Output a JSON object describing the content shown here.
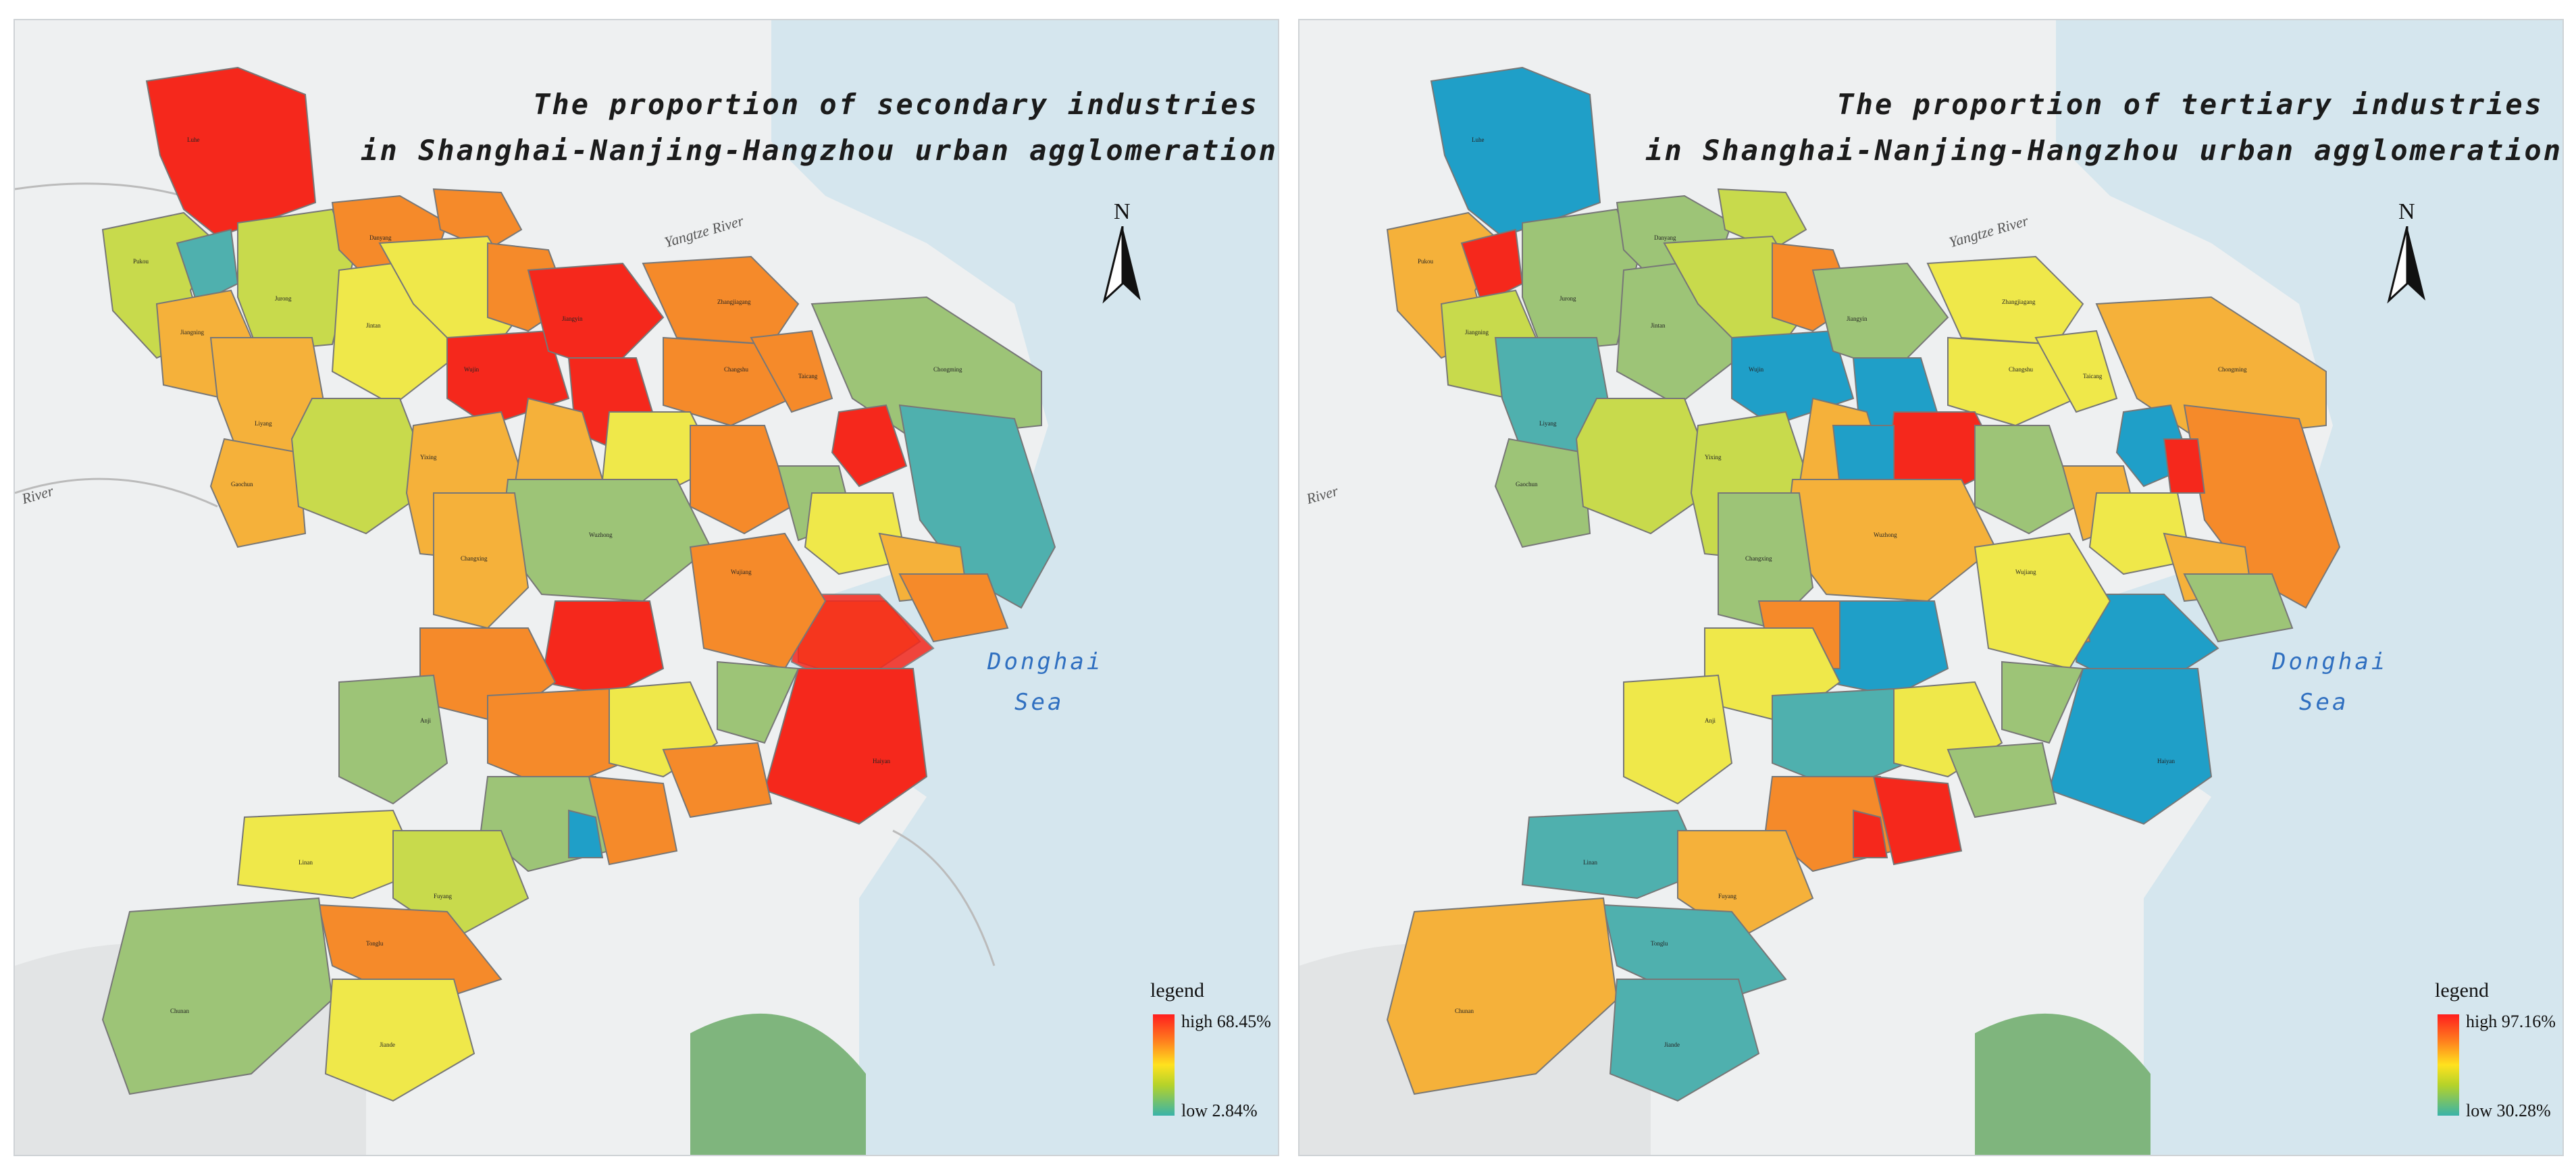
{
  "panels": [
    {
      "title_line1": "The proportion of secondary industries",
      "title_line2": "in Shanghai-Nanjing-Hangzhou urban agglomeration",
      "legend": {
        "title": "legend",
        "high": "high 68.45%",
        "low": "low 2.84%"
      },
      "north": "N",
      "sea_line1": "Donghai",
      "sea_line2": "Sea",
      "river_label": "Yangtze River",
      "river_label_left": "River"
    },
    {
      "title_line1": "The proportion of tertiary industries",
      "title_line2": "in Shanghai-Nanjing-Hangzhou urban agglomeration",
      "legend": {
        "title": "legend",
        "high": "high 97.16%",
        "low": "low 30.28%"
      },
      "north": "N",
      "sea_line1": "Donghai",
      "sea_line2": "Sea",
      "river_label": "Yangtze River",
      "river_label_left": "River"
    }
  ],
  "colors": {
    "sea": "#d5e6ee",
    "land": "#eeeff0",
    "red": "#f5281c",
    "orange": "#f58a2a",
    "lightorange": "#f5b13a",
    "yellow": "#efe84a",
    "lightgreen": "#c8da4c",
    "green": "#9dc477",
    "teal": "#4fb0ae",
    "blue": "#1f9fc8"
  }
}
